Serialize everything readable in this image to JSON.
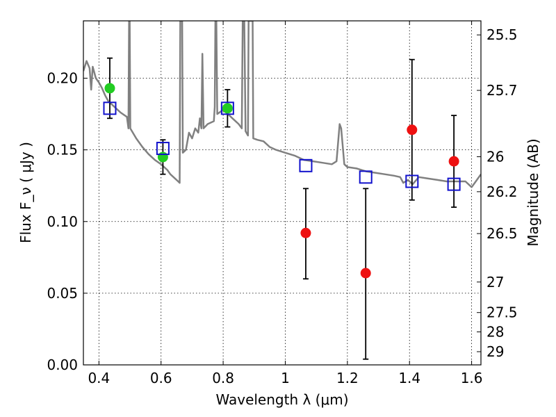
{
  "chart_data": {
    "type": "scatter",
    "xlabel": "Wavelength  λ (μm)",
    "ylabel": "Flux  F_ν  ( μJy )",
    "ylabel_right": "Magnitude (AB)",
    "xlim": [
      0.35,
      1.63
    ],
    "ylim": [
      0.0,
      0.24
    ],
    "grid": true,
    "x_ticks": [
      0.4,
      0.6,
      0.8,
      1.0,
      1.2,
      1.4,
      1.6
    ],
    "x_tick_labels": [
      "0.4",
      "0.6",
      "0.8",
      "1",
      "1.2",
      "1.4",
      "1.6"
    ],
    "y_ticks": [
      0.0,
      0.05,
      0.1,
      0.15,
      0.2
    ],
    "y_tick_labels": [
      "0.00",
      "0.05",
      "0.10",
      "0.15",
      "0.20"
    ],
    "right_ticks": [
      {
        "label": "25.5",
        "flux": 0.2302
      },
      {
        "label": "25.7",
        "flux": 0.1915
      },
      {
        "label": "26",
        "flux": 0.1452
      },
      {
        "label": "26.2",
        "flux": 0.1208
      },
      {
        "label": "26.5",
        "flux": 0.0916
      },
      {
        "label": "27",
        "flux": 0.0578
      },
      {
        "label": "27.5",
        "flux": 0.0365
      },
      {
        "label": "28",
        "flux": 0.023
      },
      {
        "label": "29",
        "flux": 0.0092
      }
    ],
    "series": [
      {
        "kind": "detection",
        "color": "#22cc22",
        "points": [
          {
            "x": 0.435,
            "y": 0.193,
            "yerr_low": 0.172,
            "yerr_high": 0.214
          },
          {
            "x": 0.606,
            "y": 0.145,
            "yerr_low": 0.133,
            "yerr_high": 0.157
          },
          {
            "x": 0.814,
            "y": 0.179,
            "yerr_low": 0.166,
            "yerr_high": 0.192
          }
        ]
      },
      {
        "kind": "low-significance",
        "color": "#ee1111",
        "points": [
          {
            "x": 1.066,
            "y": 0.092,
            "yerr_low": 0.06,
            "yerr_high": 0.123
          },
          {
            "x": 1.259,
            "y": 0.064,
            "yerr_low": 0.004,
            "yerr_high": 0.123
          },
          {
            "x": 1.408,
            "y": 0.164,
            "yerr_low": 0.115,
            "yerr_high": 0.213
          },
          {
            "x": 1.543,
            "y": 0.142,
            "yerr_low": 0.11,
            "yerr_high": 0.174
          }
        ]
      },
      {
        "kind": "model-photometry",
        "color": "#1111cc",
        "points": [
          {
            "x": 0.435,
            "y": 0.179
          },
          {
            "x": 0.606,
            "y": 0.151
          },
          {
            "x": 0.814,
            "y": 0.179
          },
          {
            "x": 1.066,
            "y": 0.139
          },
          {
            "x": 1.259,
            "y": 0.131
          },
          {
            "x": 1.408,
            "y": 0.128
          },
          {
            "x": 1.543,
            "y": 0.126
          }
        ]
      }
    ],
    "model_spectrum": {
      "color": "#808080",
      "points": [
        [
          0.35,
          0.205
        ],
        [
          0.36,
          0.212
        ],
        [
          0.37,
          0.207
        ],
        [
          0.375,
          0.192
        ],
        [
          0.38,
          0.208
        ],
        [
          0.39,
          0.2
        ],
        [
          0.4,
          0.197
        ],
        [
          0.41,
          0.193
        ],
        [
          0.42,
          0.188
        ],
        [
          0.43,
          0.184
        ],
        [
          0.45,
          0.18
        ],
        [
          0.47,
          0.176
        ],
        [
          0.49,
          0.173
        ],
        [
          0.495,
          0.165
        ],
        [
          0.497,
          0.24
        ],
        [
          0.499,
          0.24
        ],
        [
          0.501,
          0.165
        ],
        [
          0.52,
          0.158
        ],
        [
          0.54,
          0.152
        ],
        [
          0.56,
          0.147
        ],
        [
          0.58,
          0.143
        ],
        [
          0.6,
          0.14
        ],
        [
          0.62,
          0.136
        ],
        [
          0.63,
          0.133
        ],
        [
          0.64,
          0.131
        ],
        [
          0.65,
          0.129
        ],
        [
          0.66,
          0.127
        ],
        [
          0.662,
          0.24
        ],
        [
          0.668,
          0.24
        ],
        [
          0.67,
          0.148
        ],
        [
          0.68,
          0.15
        ],
        [
          0.69,
          0.162
        ],
        [
          0.7,
          0.158
        ],
        [
          0.71,
          0.165
        ],
        [
          0.72,
          0.162
        ],
        [
          0.725,
          0.172
        ],
        [
          0.73,
          0.165
        ],
        [
          0.733,
          0.217
        ],
        [
          0.737,
          0.165
        ],
        [
          0.75,
          0.168
        ],
        [
          0.77,
          0.17
        ],
        [
          0.773,
          0.18
        ],
        [
          0.775,
          0.24
        ],
        [
          0.778,
          0.24
        ],
        [
          0.781,
          0.175
        ],
        [
          0.8,
          0.178
        ],
        [
          0.82,
          0.174
        ],
        [
          0.83,
          0.172
        ],
        [
          0.84,
          0.17
        ],
        [
          0.85,
          0.168
        ],
        [
          0.86,
          0.165
        ],
        [
          0.863,
          0.24
        ],
        [
          0.868,
          0.24
        ],
        [
          0.872,
          0.163
        ],
        [
          0.88,
          0.16
        ],
        [
          0.882,
          0.24
        ],
        [
          0.895,
          0.24
        ],
        [
          0.897,
          0.158
        ],
        [
          0.91,
          0.157
        ],
        [
          0.93,
          0.156
        ],
        [
          0.95,
          0.152
        ],
        [
          0.97,
          0.15
        ],
        [
          1.0,
          0.148
        ],
        [
          1.03,
          0.146
        ],
        [
          1.06,
          0.143
        ],
        [
          1.09,
          0.142
        ],
        [
          1.12,
          0.141
        ],
        [
          1.15,
          0.14
        ],
        [
          1.165,
          0.142
        ],
        [
          1.175,
          0.168
        ],
        [
          1.18,
          0.165
        ],
        [
          1.19,
          0.14
        ],
        [
          1.2,
          0.138
        ],
        [
          1.23,
          0.137
        ],
        [
          1.26,
          0.135
        ],
        [
          1.29,
          0.134
        ],
        [
          1.32,
          0.133
        ],
        [
          1.35,
          0.132
        ],
        [
          1.37,
          0.131
        ],
        [
          1.38,
          0.127
        ],
        [
          1.395,
          0.129
        ],
        [
          1.41,
          0.126
        ],
        [
          1.43,
          0.131
        ],
        [
          1.46,
          0.13
        ],
        [
          1.49,
          0.129
        ],
        [
          1.52,
          0.128
        ],
        [
          1.55,
          0.128
        ],
        [
          1.58,
          0.128
        ],
        [
          1.6,
          0.124
        ],
        [
          1.61,
          0.127
        ],
        [
          1.63,
          0.133
        ]
      ]
    }
  }
}
